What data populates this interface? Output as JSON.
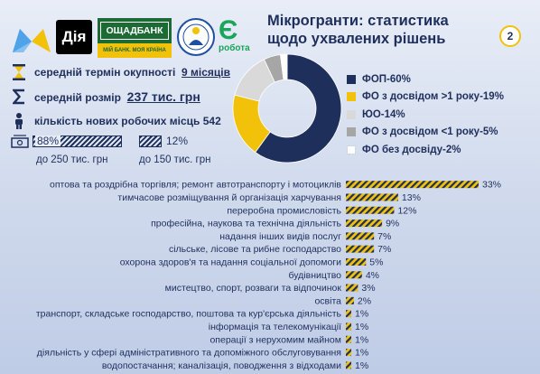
{
  "title": "Мікрогранти: статистика щодо ухвалених рішень",
  "page_number": "2",
  "logos": {
    "diia": "Дія",
    "bank_name": "ОЩАДБАНК",
    "bank_slogan": "МІЙ БАНК. МОЯ КРАЇНА",
    "robota_mark": "Є",
    "robota_text": "робота"
  },
  "stats": {
    "term_label": "середній термін окупності",
    "term_value": "9 місяців",
    "size_label": "середній розмір",
    "size_value": "237 тис. грн",
    "jobs_label": "кількість нових робочих місць",
    "jobs_value": "542"
  },
  "shares": {
    "a_pct": "88%",
    "a_label": "до 250 тис. грн",
    "a_value": 88,
    "b_pct": "12%",
    "b_label": "до 150 тис. грн",
    "b_value": 12
  },
  "colors": {
    "navy": "#1f2f5c",
    "yellow": "#f2c20a",
    "gray": "#a6a6a6",
    "light_gray": "#d9d9d9",
    "white": "#ffffff"
  },
  "chart_data": [
    {
      "type": "pie",
      "donut": true,
      "legend_position": "right",
      "slices": [
        {
          "label": "ФОП-60%",
          "value": 60,
          "color": "#1f2f5c"
        },
        {
          "label": "ФО з досвідом >1 року-19%",
          "value": 19,
          "color": "#f2c20a"
        },
        {
          "label": "ЮО-14%",
          "value": 14,
          "color": "#d9d9d9"
        },
        {
          "label": "ФО з досвідом <1 року-5%",
          "value": 5,
          "color": "#a6a6a6"
        },
        {
          "label": "ФО без досвіду-2%",
          "value": 2,
          "color": "#ffffff"
        }
      ]
    },
    {
      "type": "bar",
      "orientation": "horizontal",
      "categories": [
        "оптова та роздрібна торгівля; ремонт автотранспорту і мотоциклів",
        "тимчасове розміщування й організація харчування",
        "переробна промисловість",
        "професійна, наукова та технічна діяльність",
        "надання інших видів послуг",
        "сільське, лісове та рибне господарство",
        "охорона здоров'я та надання соціальної допомоги",
        "будівництво",
        "мистецтво, спорт, розваги та відпочинок",
        "освіта",
        "транспорт, складське господарство, поштова та кур'єрська діяльність",
        "інформація та телекомунікації",
        "операції з нерухомим майном",
        "діяльність у сфері адміністративного та допоміжного обслуговування",
        "водопостачання; каналізація, поводження з відходами"
      ],
      "values": [
        33,
        13,
        12,
        9,
        7,
        7,
        5,
        4,
        3,
        2,
        1,
        1,
        1,
        1,
        1
      ],
      "value_labels": [
        "33%",
        "13%",
        "12%",
        "9%",
        "7%",
        "7%",
        "5%",
        "4%",
        "3%",
        "2%",
        "1%",
        "1%",
        "1%",
        "1%",
        "1%"
      ],
      "xlim": [
        0,
        33
      ],
      "grid": false
    }
  ]
}
